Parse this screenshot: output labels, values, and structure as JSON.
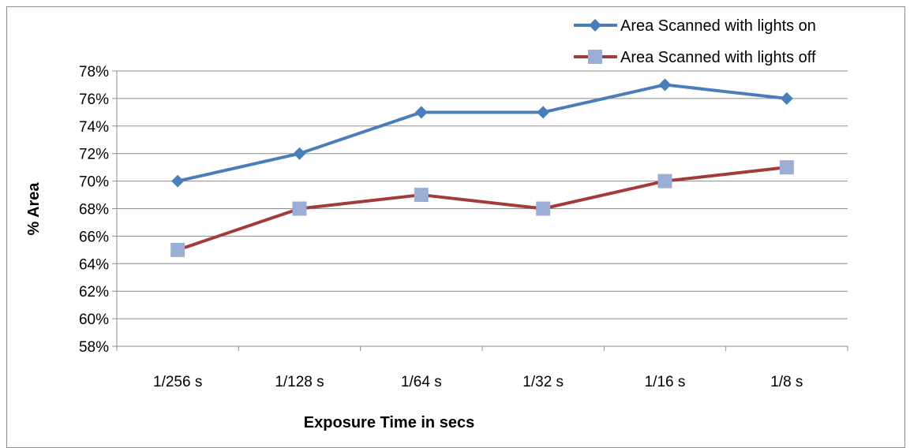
{
  "chart_data": {
    "type": "line",
    "title": "",
    "xlabel": "Exposure Time in secs",
    "ylabel": "% Area",
    "categories": [
      "1/256 s",
      "1/128 s",
      "1/64 s",
      "1/32 s",
      "1/16 s",
      "1/8 s"
    ],
    "ylim": [
      58,
      78
    ],
    "yticks": [
      58,
      60,
      62,
      64,
      66,
      68,
      70,
      72,
      74,
      76,
      78
    ],
    "ytick_labels": [
      "58%",
      "60%",
      "62%",
      "64%",
      "66%",
      "68%",
      "70%",
      "72%",
      "74%",
      "76%",
      "78%"
    ],
    "grid": true,
    "legend_position": "top-right",
    "series": [
      {
        "name": "Area Scanned with lights on",
        "values": [
          70,
          72,
          75,
          75,
          77,
          76
        ],
        "line_color": "#4a7ebb",
        "marker": "diamond",
        "marker_color": "#4a7ebb"
      },
      {
        "name": "Area Scanned with lights off",
        "values": [
          65,
          68,
          69,
          68,
          70,
          71
        ],
        "line_color": "#a23b3b",
        "marker": "square",
        "marker_color": "#9aaed6"
      }
    ]
  }
}
